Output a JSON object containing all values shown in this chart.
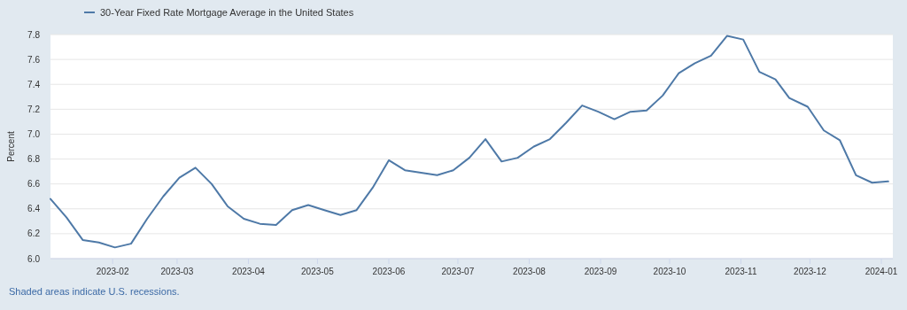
{
  "chart_data": {
    "type": "line",
    "ylabel": "Percent",
    "legend": "top left",
    "grid": "y",
    "marker": "none",
    "line_style": "solid",
    "annotations": [
      "Shaded areas indicate U.S. recessions."
    ],
    "x": [
      "2023-01-05",
      "2023-01-12",
      "2023-01-19",
      "2023-01-26",
      "2023-02-02",
      "2023-02-09",
      "2023-02-16",
      "2023-02-23",
      "2023-03-02",
      "2023-03-09",
      "2023-03-16",
      "2023-03-23",
      "2023-03-30",
      "2023-04-06",
      "2023-04-13",
      "2023-04-20",
      "2023-04-27",
      "2023-05-04",
      "2023-05-11",
      "2023-05-18",
      "2023-05-25",
      "2023-06-01",
      "2023-06-08",
      "2023-06-15",
      "2023-06-22",
      "2023-06-29",
      "2023-07-06",
      "2023-07-13",
      "2023-07-20",
      "2023-07-27",
      "2023-08-03",
      "2023-08-10",
      "2023-08-17",
      "2023-08-24",
      "2023-08-31",
      "2023-09-07",
      "2023-09-14",
      "2023-09-21",
      "2023-09-28",
      "2023-10-05",
      "2023-10-12",
      "2023-10-19",
      "2023-10-26",
      "2023-11-02",
      "2023-11-09",
      "2023-11-16",
      "2023-11-22",
      "2023-11-30",
      "2023-12-07",
      "2023-12-14",
      "2023-12-21",
      "2023-12-28",
      "2024-01-04"
    ],
    "series": [
      {
        "name": "30-Year Fixed Rate Mortgage Average in the United States",
        "color": "#4e79a7",
        "values": [
          6.48,
          6.33,
          6.15,
          6.13,
          6.09,
          6.12,
          6.32,
          6.5,
          6.65,
          6.73,
          6.6,
          6.42,
          6.32,
          6.28,
          6.27,
          6.39,
          6.43,
          6.39,
          6.35,
          6.39,
          6.57,
          6.79,
          6.71,
          6.69,
          6.67,
          6.71,
          6.81,
          6.96,
          6.78,
          6.81,
          6.9,
          6.96,
          7.09,
          7.23,
          7.18,
          7.12,
          7.18,
          7.19,
          7.31,
          7.49,
          7.57,
          7.63,
          7.79,
          7.76,
          7.5,
          7.44,
          7.29,
          7.22,
          7.03,
          6.95,
          6.67,
          6.61,
          6.62
        ]
      }
    ],
    "xlim": [
      "2023-01-05",
      "2024-01-06"
    ],
    "xticks": [
      {
        "value": "2023-02-01",
        "label": "2023-02"
      },
      {
        "value": "2023-03-01",
        "label": "2023-03"
      },
      {
        "value": "2023-04-01",
        "label": "2023-04"
      },
      {
        "value": "2023-05-01",
        "label": "2023-05"
      },
      {
        "value": "2023-06-01",
        "label": "2023-06"
      },
      {
        "value": "2023-07-01",
        "label": "2023-07"
      },
      {
        "value": "2023-08-01",
        "label": "2023-08"
      },
      {
        "value": "2023-09-01",
        "label": "2023-09"
      },
      {
        "value": "2023-10-01",
        "label": "2023-10"
      },
      {
        "value": "2023-11-01",
        "label": "2023-11"
      },
      {
        "value": "2023-12-01",
        "label": "2023-12"
      },
      {
        "value": "2024-01-01",
        "label": "2024-01"
      }
    ],
    "ylim": [
      6.0,
      7.8
    ],
    "yticks": [
      {
        "value": 6.0,
        "label": "6.0"
      },
      {
        "value": 6.2,
        "label": "6.2"
      },
      {
        "value": 6.4,
        "label": "6.4"
      },
      {
        "value": 6.6,
        "label": "6.6"
      },
      {
        "value": 6.8,
        "label": "6.8"
      },
      {
        "value": 7.0,
        "label": "7.0"
      },
      {
        "value": 7.2,
        "label": "7.2"
      },
      {
        "value": 7.4,
        "label": "7.4"
      },
      {
        "value": 7.6,
        "label": "7.6"
      },
      {
        "value": 7.8,
        "label": "7.8"
      }
    ]
  }
}
